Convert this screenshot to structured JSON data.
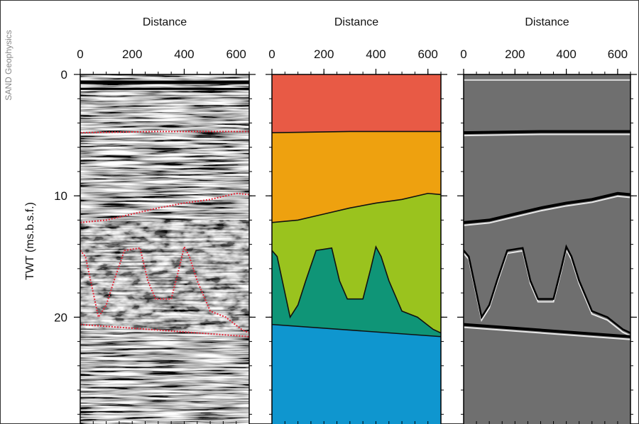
{
  "credit": "SAND Geophysics",
  "chart_data": [
    {
      "type": "image",
      "x_label": "Distance",
      "y_label": "TWT (ms.b.s.f.)",
      "xlim": [
        0,
        650
      ],
      "xticks": [
        0,
        200,
        400,
        600
      ],
      "ylim": [
        0,
        28.8
      ],
      "yticks": [
        0,
        10,
        20
      ]
    },
    {
      "type": "image",
      "x_label": "Distance",
      "xlim": [
        0,
        650
      ],
      "xticks": [
        0,
        200,
        400,
        600
      ],
      "ylim": [
        0,
        28.8
      ]
    },
    {
      "type": "image",
      "x_label": "Distance",
      "xlim": [
        0,
        650
      ],
      "xticks": [
        0,
        200,
        400,
        600
      ],
      "ylim": [
        0,
        28.8
      ]
    }
  ]
}
